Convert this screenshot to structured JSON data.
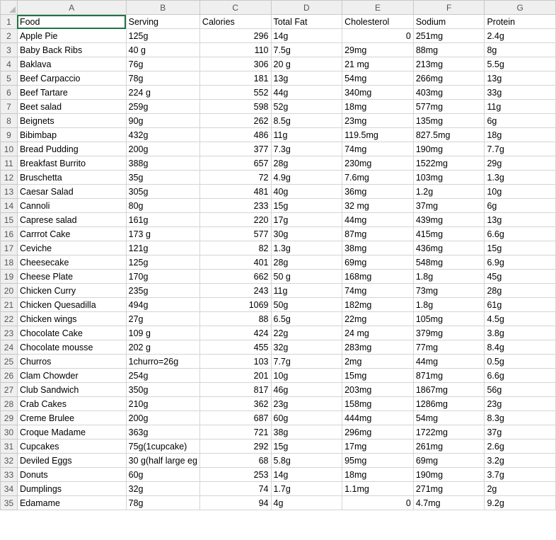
{
  "columns": [
    "A",
    "B",
    "C",
    "D",
    "E",
    "F",
    "G"
  ],
  "rows": [
    [
      "Food",
      "Serving",
      "Calories",
      "Total Fat",
      "Cholesterol",
      "Sodium",
      "Protein"
    ],
    [
      "Apple Pie",
      "125g",
      "296",
      "14g",
      "0",
      "251mg",
      "2.4g"
    ],
    [
      "Baby Back Ribs",
      "40 g",
      "110",
      "7.5g",
      "29mg",
      "88mg",
      "8g"
    ],
    [
      "Baklava",
      "76g",
      "306",
      "20 g",
      "21 mg",
      "213mg",
      "5.5g"
    ],
    [
      "Beef Carpaccio",
      "78g",
      "181",
      "13g",
      "54mg",
      "266mg",
      "13g"
    ],
    [
      "Beef Tartare",
      "224 g",
      "552",
      "44g",
      "340mg",
      "403mg",
      "33g"
    ],
    [
      "Beet salad",
      "259g",
      "598",
      "52g",
      "18mg",
      "577mg",
      "11g"
    ],
    [
      "Beignets",
      "90g",
      "262",
      "8.5g",
      "23mg",
      "135mg",
      "6g"
    ],
    [
      "Bibimbap",
      "432g",
      "486",
      "11g",
      "119.5mg",
      "827.5mg",
      "18g"
    ],
    [
      "Bread Pudding",
      "200g",
      "377",
      "7.3g",
      "74mg",
      "190mg",
      "7.7g"
    ],
    [
      "Breakfast Burrito",
      "388g",
      "657",
      "28g",
      "230mg",
      "1522mg",
      "29g"
    ],
    [
      "Bruschetta",
      "35g",
      "72",
      "4.9g",
      "7.6mg",
      "103mg",
      "1.3g"
    ],
    [
      "Caesar Salad",
      "305g",
      "481",
      "40g",
      "36mg",
      "1.2g",
      "10g"
    ],
    [
      "Cannoli",
      "80g",
      "233",
      "15g",
      "32 mg",
      "37mg",
      "6g"
    ],
    [
      "Caprese salad",
      "161g",
      "220",
      "17g",
      "44mg",
      "439mg",
      "13g"
    ],
    [
      "Carrrot Cake",
      "173 g",
      "577",
      "30g",
      "87mg",
      "415mg",
      "6.6g"
    ],
    [
      "Ceviche",
      "121g",
      "82",
      "1.3g",
      "38mg",
      "436mg",
      "15g"
    ],
    [
      "Cheesecake",
      "125g",
      "401",
      "28g",
      "69mg",
      "548mg",
      "6.9g"
    ],
    [
      "Cheese Plate",
      "170g",
      "662",
      "50 g",
      "168mg",
      "1.8g",
      "45g"
    ],
    [
      "Chicken Curry",
      "235g",
      "243",
      "11g",
      "74mg",
      "73mg",
      "28g"
    ],
    [
      "Chicken Quesadilla",
      "494g",
      "1069",
      "50g",
      "182mg",
      "1.8g",
      "61g"
    ],
    [
      "Chicken wings",
      "27g",
      "88",
      "6.5g",
      "22mg",
      "105mg",
      "4.5g"
    ],
    [
      "Chocolate Cake",
      "109 g",
      "424",
      "22g",
      "24 mg",
      "379mg",
      "3.8g"
    ],
    [
      "Chocolate mousse",
      "202 g",
      "455",
      "32g",
      "283mg",
      "77mg",
      "8.4g"
    ],
    [
      "Churros",
      "1churro=26g",
      "103",
      "7.7g",
      "2mg",
      "44mg",
      "0.5g"
    ],
    [
      "Clam Chowder",
      "254g",
      "201",
      "10g",
      "15mg",
      "871mg",
      "6.6g"
    ],
    [
      "Club Sandwich",
      "350g",
      "817",
      "46g",
      "203mg",
      "1867mg",
      "56g"
    ],
    [
      "Crab Cakes",
      "210g",
      "362",
      "23g",
      "158mg",
      "1286mg",
      "23g"
    ],
    [
      "Creme Brulee",
      "200g",
      "687",
      "60g",
      "444mg",
      "54mg",
      "8.3g"
    ],
    [
      "Croque Madame",
      "363g",
      "721",
      "38g",
      "296mg",
      "1722mg",
      "37g"
    ],
    [
      "Cupcakes",
      "75g(1cupcake)",
      "292",
      "15g",
      "17mg",
      "261mg",
      "2.6g"
    ],
    [
      "Deviled Eggs",
      "30 g(half large eg",
      "68",
      "5.8g",
      "95mg",
      "69mg",
      "3.2g"
    ],
    [
      "Donuts",
      "60g",
      "253",
      "14g",
      "18mg",
      "190mg",
      "3.7g"
    ],
    [
      "Dumplings",
      "32g",
      "74",
      "1.7g",
      "1.1mg",
      "271mg",
      "2g"
    ],
    [
      "Edamame",
      "78g",
      "94",
      "4g",
      "0",
      "4.7mg",
      "9.2g"
    ]
  ],
  "numeric_columns": [
    2
  ],
  "numeric_cells": [
    [
      1,
      4
    ],
    [
      34,
      4
    ]
  ],
  "selected_cell": "A1",
  "accent_color": "#217346"
}
